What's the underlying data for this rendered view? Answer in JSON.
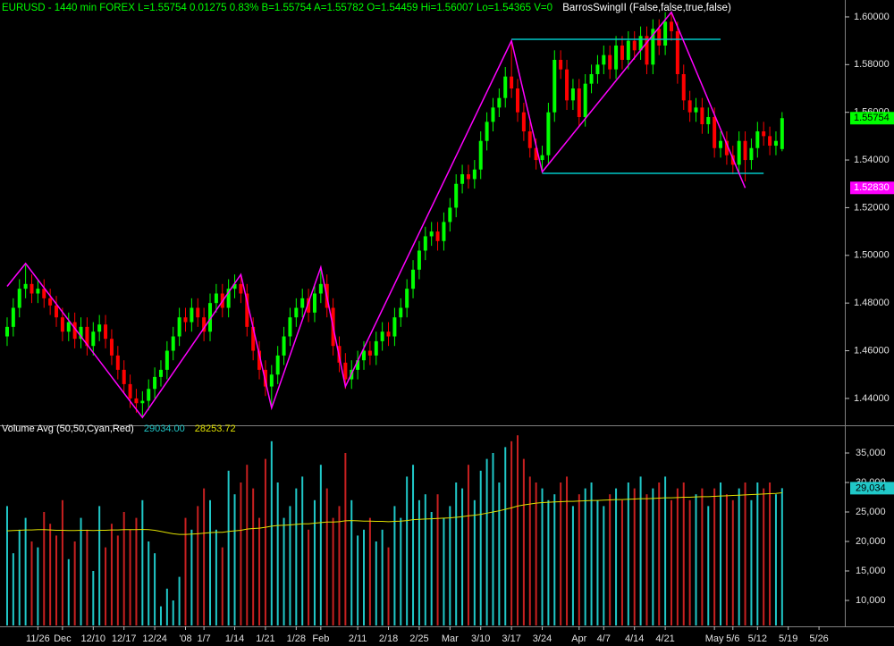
{
  "chart_data": [
    {
      "type": "candlestick",
      "title": "EURUSD - 1440 min  FOREX  L=1.55754  0.01275  0.83%  B=1.55754  A=1.55782  O=1.54459  Hi=1.56007  Lo=1.54365  V=0",
      "indicator": "BarrosSwingII (False,false,true,false)",
      "title_color": "#00ff00",
      "indicator_color": "#ffffff",
      "up_color": "#00ff00",
      "down_color": "#ff0000",
      "ylim": [
        1.4291,
        1.6071
      ],
      "yticks": [
        {
          "value": 1.44,
          "label": "1.44000"
        },
        {
          "value": 1.46,
          "label": "1.46000"
        },
        {
          "value": 1.48,
          "label": "1.48000"
        },
        {
          "value": 1.5,
          "label": "1.50000"
        },
        {
          "value": 1.52,
          "label": "1.52000"
        },
        {
          "value": 1.54,
          "label": "1.54000"
        },
        {
          "value": 1.56,
          "label": "1.56000"
        },
        {
          "value": 1.58,
          "label": "1.58000"
        },
        {
          "value": 1.6,
          "label": "1.60000"
        }
      ],
      "open": [
        1.466,
        1.47,
        1.478,
        1.486,
        1.488,
        1.484,
        1.486,
        1.482,
        1.479,
        1.474,
        1.468,
        1.472,
        1.465,
        1.47,
        1.462,
        1.468,
        1.471,
        1.465,
        1.458,
        1.452,
        1.446,
        1.44,
        1.438,
        1.439,
        1.444,
        1.449,
        1.452,
        1.46,
        1.466,
        1.474,
        1.472,
        1.478,
        1.474,
        1.468,
        1.48,
        1.484,
        1.478,
        1.486,
        1.488,
        1.484,
        1.47,
        1.46,
        1.452,
        1.445,
        1.45,
        1.458,
        1.466,
        1.474,
        1.478,
        1.482,
        1.476,
        1.484,
        1.488,
        1.478,
        1.462,
        1.455,
        1.448,
        1.452,
        1.456,
        1.46,
        1.458,
        1.464,
        1.468,
        1.466,
        1.474,
        1.478,
        1.486,
        1.494,
        1.502,
        1.508,
        1.51,
        1.506,
        1.514,
        1.52,
        1.53,
        1.534,
        1.532,
        1.536,
        1.548,
        1.556,
        1.562,
        1.566,
        1.575,
        1.57,
        1.56,
        1.552,
        1.545,
        1.54,
        1.542,
        1.56,
        1.582,
        1.578,
        1.565,
        1.57,
        1.558,
        1.572,
        1.576,
        1.58,
        1.584,
        1.578,
        1.588,
        1.582,
        1.59,
        1.586,
        1.592,
        1.58,
        1.595,
        1.588,
        1.598,
        1.594,
        1.576,
        1.565,
        1.56,
        1.562,
        1.555,
        1.558,
        1.545,
        1.548,
        1.542,
        1.538,
        1.548,
        1.54,
        1.545,
        1.552,
        1.55,
        1.546,
        1.54459
      ],
      "high": [
        1.474,
        1.482,
        1.49,
        1.496,
        1.492,
        1.49,
        1.49,
        1.486,
        1.483,
        1.478,
        1.476,
        1.476,
        1.474,
        1.474,
        1.472,
        1.475,
        1.475,
        1.469,
        1.462,
        1.456,
        1.45,
        1.444,
        1.443,
        1.448,
        1.453,
        1.456,
        1.464,
        1.47,
        1.478,
        1.478,
        1.482,
        1.482,
        1.478,
        1.484,
        1.488,
        1.488,
        1.49,
        1.492,
        1.492,
        1.488,
        1.474,
        1.464,
        1.456,
        1.454,
        1.462,
        1.47,
        1.478,
        1.482,
        1.486,
        1.486,
        1.488,
        1.495,
        1.492,
        1.482,
        1.466,
        1.459,
        1.456,
        1.46,
        1.464,
        1.464,
        1.468,
        1.472,
        1.472,
        1.478,
        1.482,
        1.49,
        1.498,
        1.506,
        1.512,
        1.514,
        1.514,
        1.518,
        1.524,
        1.534,
        1.538,
        1.538,
        1.54,
        1.552,
        1.56,
        1.566,
        1.57,
        1.579,
        1.59,
        1.574,
        1.564,
        1.556,
        1.549,
        1.546,
        1.564,
        1.586,
        1.586,
        1.582,
        1.574,
        1.574,
        1.576,
        1.58,
        1.584,
        1.588,
        1.588,
        1.592,
        1.592,
        1.594,
        1.594,
        1.596,
        1.596,
        1.599,
        1.599,
        1.602,
        1.602,
        1.598,
        1.58,
        1.569,
        1.566,
        1.566,
        1.562,
        1.562,
        1.552,
        1.552,
        1.546,
        1.552,
        1.552,
        1.549,
        1.556,
        1.556,
        1.554,
        1.552,
        1.56007
      ],
      "low": [
        1.462,
        1.466,
        1.474,
        1.482,
        1.48,
        1.48,
        1.478,
        1.475,
        1.47,
        1.464,
        1.464,
        1.461,
        1.461,
        1.458,
        1.458,
        1.464,
        1.461,
        1.454,
        1.448,
        1.442,
        1.436,
        1.434,
        1.432,
        1.435,
        1.44,
        1.445,
        1.448,
        1.456,
        1.462,
        1.468,
        1.468,
        1.47,
        1.464,
        1.464,
        1.476,
        1.474,
        1.474,
        1.482,
        1.48,
        1.466,
        1.456,
        1.448,
        1.441,
        1.437,
        1.446,
        1.454,
        1.462,
        1.47,
        1.474,
        1.472,
        1.472,
        1.48,
        1.474,
        1.458,
        1.451,
        1.444,
        1.444,
        1.448,
        1.452,
        1.454,
        1.454,
        1.46,
        1.462,
        1.462,
        1.47,
        1.474,
        1.482,
        1.49,
        1.498,
        1.504,
        1.502,
        1.502,
        1.51,
        1.516,
        1.526,
        1.528,
        1.528,
        1.532,
        1.544,
        1.552,
        1.558,
        1.562,
        1.566,
        1.556,
        1.548,
        1.541,
        1.536,
        1.535,
        1.538,
        1.556,
        1.574,
        1.561,
        1.561,
        1.554,
        1.554,
        1.568,
        1.572,
        1.576,
        1.574,
        1.574,
        1.578,
        1.578,
        1.582,
        1.582,
        1.576,
        1.576,
        1.584,
        1.584,
        1.59,
        1.572,
        1.561,
        1.556,
        1.556,
        1.551,
        1.551,
        1.541,
        1.541,
        1.538,
        1.534,
        1.534,
        1.531,
        1.536,
        1.541,
        1.546,
        1.542,
        1.542,
        1.54365
      ],
      "close": [
        1.47,
        1.478,
        1.486,
        1.488,
        1.484,
        1.486,
        1.482,
        1.479,
        1.474,
        1.468,
        1.472,
        1.465,
        1.47,
        1.462,
        1.468,
        1.471,
        1.465,
        1.458,
        1.452,
        1.446,
        1.44,
        1.438,
        1.439,
        1.444,
        1.449,
        1.452,
        1.46,
        1.466,
        1.474,
        1.472,
        1.478,
        1.474,
        1.468,
        1.48,
        1.484,
        1.478,
        1.486,
        1.488,
        1.484,
        1.47,
        1.46,
        1.452,
        1.445,
        1.45,
        1.458,
        1.466,
        1.474,
        1.478,
        1.482,
        1.476,
        1.484,
        1.488,
        1.478,
        1.462,
        1.455,
        1.448,
        1.452,
        1.456,
        1.46,
        1.458,
        1.464,
        1.468,
        1.466,
        1.474,
        1.478,
        1.486,
        1.494,
        1.502,
        1.508,
        1.51,
        1.506,
        1.514,
        1.52,
        1.53,
        1.534,
        1.532,
        1.536,
        1.548,
        1.556,
        1.562,
        1.566,
        1.575,
        1.57,
        1.56,
        1.552,
        1.545,
        1.54,
        1.542,
        1.56,
        1.582,
        1.578,
        1.565,
        1.57,
        1.558,
        1.572,
        1.576,
        1.58,
        1.584,
        1.578,
        1.588,
        1.582,
        1.59,
        1.586,
        1.592,
        1.58,
        1.595,
        1.588,
        1.598,
        1.594,
        1.576,
        1.565,
        1.56,
        1.562,
        1.555,
        1.558,
        1.545,
        1.548,
        1.542,
        1.538,
        1.548,
        1.54,
        1.545,
        1.552,
        1.55,
        1.546,
        1.548,
        1.55754
      ],
      "swing": {
        "color": "#ff00ff",
        "x": [
          0,
          3,
          22,
          38,
          43,
          51,
          55,
          82,
          87,
          108,
          120
        ],
        "values": [
          1.487,
          1.4966,
          1.432,
          1.492,
          1.436,
          1.495,
          1.445,
          1.59,
          1.535,
          1.602,
          1.5283
        ]
      },
      "levels": [
        {
          "color": "#00c8c8",
          "x": [
            82,
            116
          ],
          "values": [
            1.5906,
            1.5906
          ]
        },
        {
          "color": "#00c8c8",
          "x": [
            87,
            123
          ],
          "values": [
            1.5344,
            1.5344
          ]
        }
      ],
      "last_label": {
        "value": 1.55754,
        "label": "1.55754",
        "color": "#00ff00"
      },
      "swing_label": {
        "value": 1.5283,
        "label": "1.52830",
        "color": "#ff00ff"
      }
    },
    {
      "type": "bar",
      "title": "Volume Avg (50,50,Cyan,Red)",
      "up_color": "#20c8c8",
      "down_color": "#c82020",
      "average_color": "#e0e000",
      "ylim": [
        5758,
        39394
      ],
      "yticks": [
        {
          "value": 10000,
          "label": "10,000"
        },
        {
          "value": 15000,
          "label": "15,000"
        },
        {
          "value": 20000,
          "label": "20,000"
        },
        {
          "value": 25000,
          "label": "25,000"
        },
        {
          "value": 30000,
          "label": "30,000"
        },
        {
          "value": 35000,
          "label": "35,000"
        }
      ],
      "xlim": [
        -1.16,
        136.2
      ],
      "xticks": [
        {
          "value": 5,
          "label": "11/26"
        },
        {
          "value": 9,
          "label": "Dec"
        },
        {
          "value": 14,
          "label": "12/10"
        },
        {
          "value": 19,
          "label": "12/17"
        },
        {
          "value": 24,
          "label": "12/24"
        },
        {
          "value": 29,
          "label": "'08"
        },
        {
          "value": 32,
          "label": "1/7"
        },
        {
          "value": 37,
          "label": "1/14"
        },
        {
          "value": 42,
          "label": "1/21"
        },
        {
          "value": 47,
          "label": "1/28"
        },
        {
          "value": 51,
          "label": "Feb"
        },
        {
          "value": 57,
          "label": "2/11"
        },
        {
          "value": 62,
          "label": "2/18"
        },
        {
          "value": 67,
          "label": "2/25"
        },
        {
          "value": 72,
          "label": "Mar"
        },
        {
          "value": 77,
          "label": "3/10"
        },
        {
          "value": 82,
          "label": "3/17"
        },
        {
          "value": 87,
          "label": "3/24"
        },
        {
          "value": 93,
          "label": "Apr"
        },
        {
          "value": 97,
          "label": "4/7"
        },
        {
          "value": 102,
          "label": "4/14"
        },
        {
          "value": 107,
          "label": "4/21"
        },
        {
          "value": 115,
          "label": "May"
        },
        {
          "value": 118,
          "label": "5/6"
        },
        {
          "value": 122,
          "label": "5/12"
        },
        {
          "value": 127,
          "label": "5/19"
        },
        {
          "value": 132,
          "label": "5/26"
        }
      ],
      "values": [
        26000,
        18000,
        22000,
        24000,
        20000,
        19000,
        25000,
        23000,
        21000,
        27000,
        17000,
        20000,
        24000,
        22000,
        15000,
        26000,
        19000,
        23000,
        21000,
        25000,
        22000,
        24000,
        27000,
        20000,
        18000,
        9000,
        12000,
        10000,
        14000,
        24000,
        22000,
        26000,
        29000,
        27000,
        22000,
        19000,
        32000,
        28000,
        30000,
        33000,
        29000,
        24000,
        34000,
        37000,
        30000,
        24000,
        26000,
        29000,
        31000,
        22000,
        27000,
        33000,
        29000,
        24000,
        26000,
        35000,
        27000,
        21000,
        22000,
        24000,
        20000,
        22000,
        19000,
        26000,
        24000,
        31000,
        33000,
        27000,
        28000,
        25000,
        28000,
        24000,
        26000,
        30000,
        29000,
        33000,
        27000,
        32000,
        34000,
        35000,
        30000,
        36000,
        37000,
        38000,
        34000,
        31000,
        30000,
        29000,
        27000,
        28000,
        30000,
        31000,
        26000,
        28000,
        29000,
        30000,
        27000,
        26000,
        28000,
        29000,
        27000,
        30000,
        29000,
        31000,
        28000,
        29000,
        30000,
        31000,
        27000,
        29000,
        30000,
        27000,
        28000,
        29000,
        26000,
        29000,
        30000,
        28000,
        27000,
        29000,
        30000,
        27000,
        30000,
        29000,
        30000,
        28000,
        29034
      ],
      "average": [
        21800,
        21850,
        21900,
        21950,
        21950,
        22000,
        22000,
        21950,
        21900,
        21900,
        21850,
        21850,
        21900,
        21900,
        21850,
        21900,
        21900,
        21950,
        21950,
        22000,
        22000,
        22000,
        22050,
        22000,
        21900,
        21700,
        21500,
        21300,
        21200,
        21200,
        21250,
        21300,
        21400,
        21500,
        21550,
        21550,
        21700,
        21800,
        21900,
        22100,
        22200,
        22250,
        22400,
        22600,
        22700,
        22750,
        22800,
        22900,
        23000,
        23000,
        23100,
        23200,
        23300,
        23300,
        23350,
        23500,
        23550,
        23500,
        23450,
        23450,
        23400,
        23400,
        23350,
        23400,
        23450,
        23550,
        23700,
        23750,
        23800,
        23850,
        23900,
        23950,
        24000,
        24100,
        24200,
        24350,
        24450,
        24600,
        24800,
        25000,
        25200,
        25450,
        25700,
        26000,
        26200,
        26350,
        26500,
        26600,
        26650,
        26700,
        26750,
        26800,
        26800,
        26850,
        26900,
        26950,
        26950,
        27000,
        27050,
        27100,
        27100,
        27150,
        27200,
        27250,
        27250,
        27300,
        27350,
        27400,
        27400,
        27450,
        27500,
        27500,
        27550,
        27600,
        27600,
        27650,
        27700,
        27750,
        27800,
        27850,
        27900,
        27950,
        28000,
        28050,
        28100,
        28150,
        28253.72
      ],
      "volume_text": {
        "value": 29034,
        "label": "29034.00"
      },
      "volume_label": {
        "value": 29034,
        "label": "29,034"
      }
    }
  ]
}
